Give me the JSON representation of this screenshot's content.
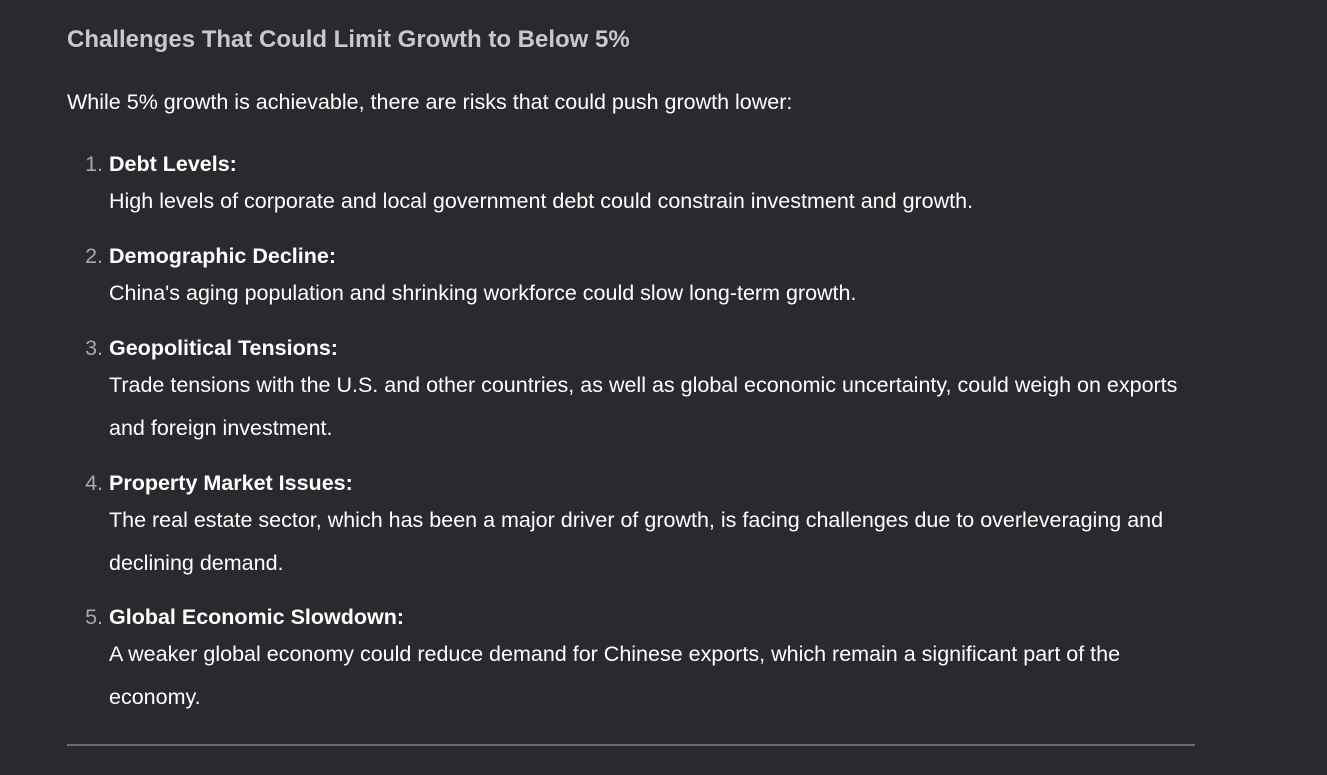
{
  "section": {
    "heading": "Challenges That Could Limit Growth to Below 5%",
    "intro": "While 5% growth is achievable, there are risks that could push growth lower:",
    "items": [
      {
        "number": "1.",
        "title": "Debt Levels:",
        "description": "High levels of corporate and local government debt could constrain investment and growth."
      },
      {
        "number": "2.",
        "title": "Demographic Decline:",
        "description": "China's aging population and shrinking workforce could slow long-term growth."
      },
      {
        "number": "3.",
        "title": "Geopolitical Tensions:",
        "description": "Trade tensions with the U.S. and other countries, as well as global economic uncertainty, could weigh on exports and foreign investment."
      },
      {
        "number": "4.",
        "title": "Property Market Issues:",
        "description": "The real estate sector, which has been a major driver of growth, is facing challenges due to overleveraging and declining demand."
      },
      {
        "number": "5.",
        "title": "Global Economic Slowdown:",
        "description": "A weaker global economy could reduce demand for Chinese exports, which remain a significant part of the economy."
      }
    ]
  }
}
